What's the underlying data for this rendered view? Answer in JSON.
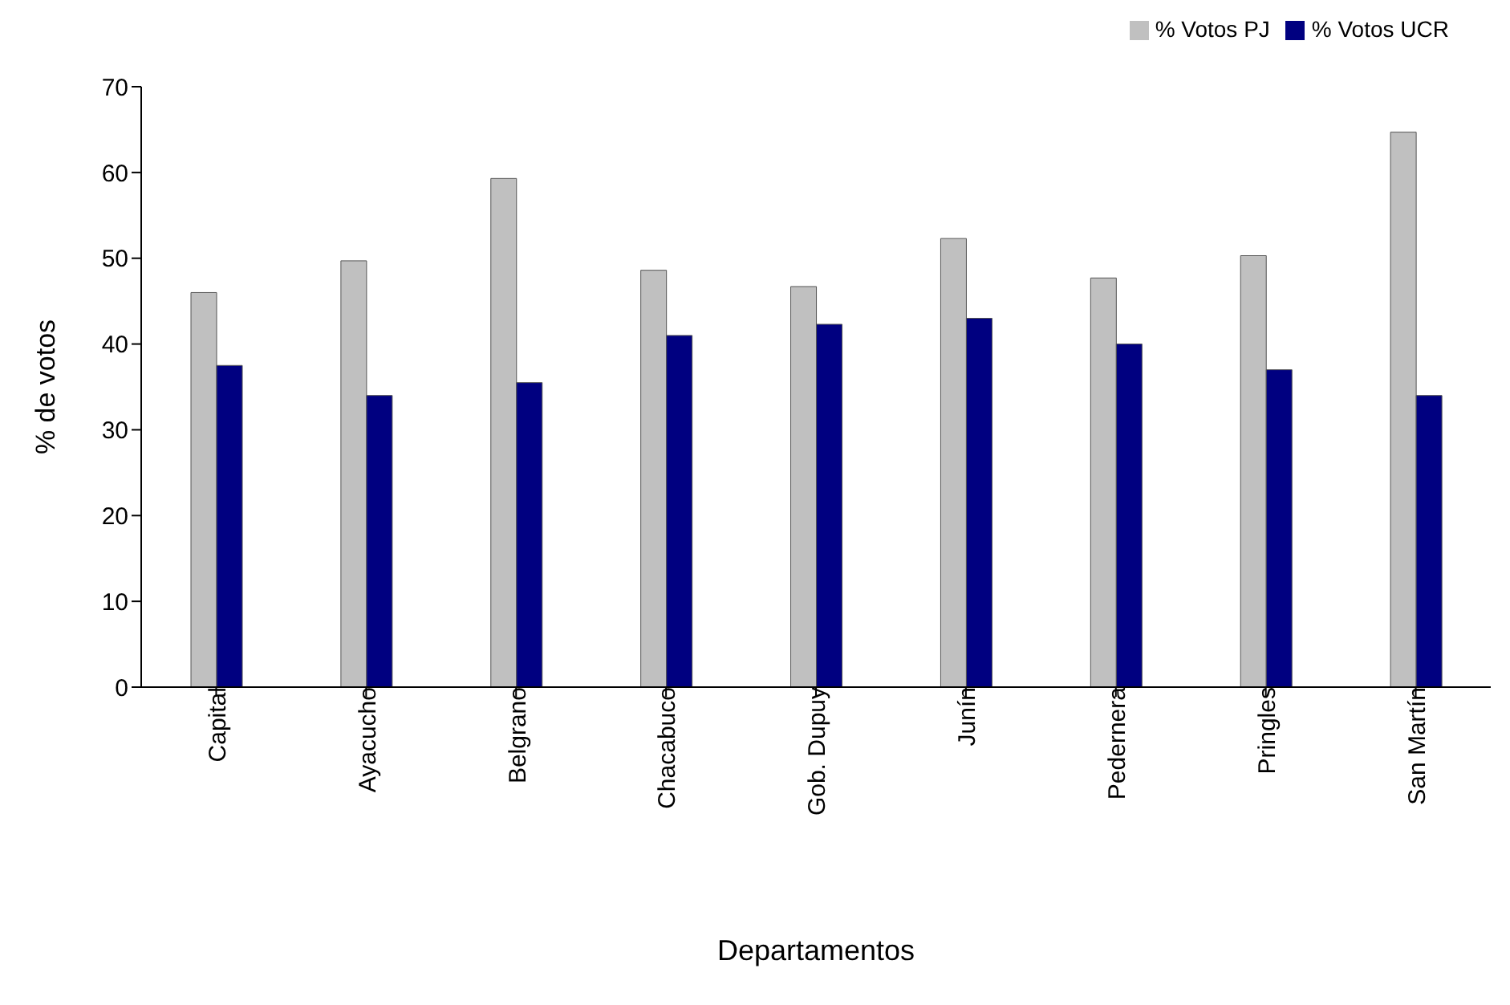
{
  "chart_data": {
    "type": "bar",
    "xlabel": "Departamentos",
    "ylabel": "% de votos",
    "categories": [
      "Capital",
      "Ayacucho",
      "Belgrano",
      "Chacabuco",
      "Gob. Dupuy",
      "Junín",
      "Pedernera",
      "Pringles",
      "San Martín"
    ],
    "series": [
      {
        "name": "% Votos PJ",
        "color": "#c0c0c0",
        "values": [
          46,
          49.7,
          59.3,
          48.6,
          46.7,
          52.3,
          47.7,
          50.3,
          64.7
        ]
      },
      {
        "name": "% Votos UCR",
        "color": "#000080",
        "values": [
          37.5,
          34,
          35.5,
          41,
          42.3,
          43,
          40,
          37,
          34
        ]
      }
    ],
    "ylim": [
      0,
      70
    ],
    "yticks": [
      0,
      10,
      20,
      30,
      40,
      50,
      60,
      70
    ],
    "grid": false,
    "legend": "top right"
  }
}
